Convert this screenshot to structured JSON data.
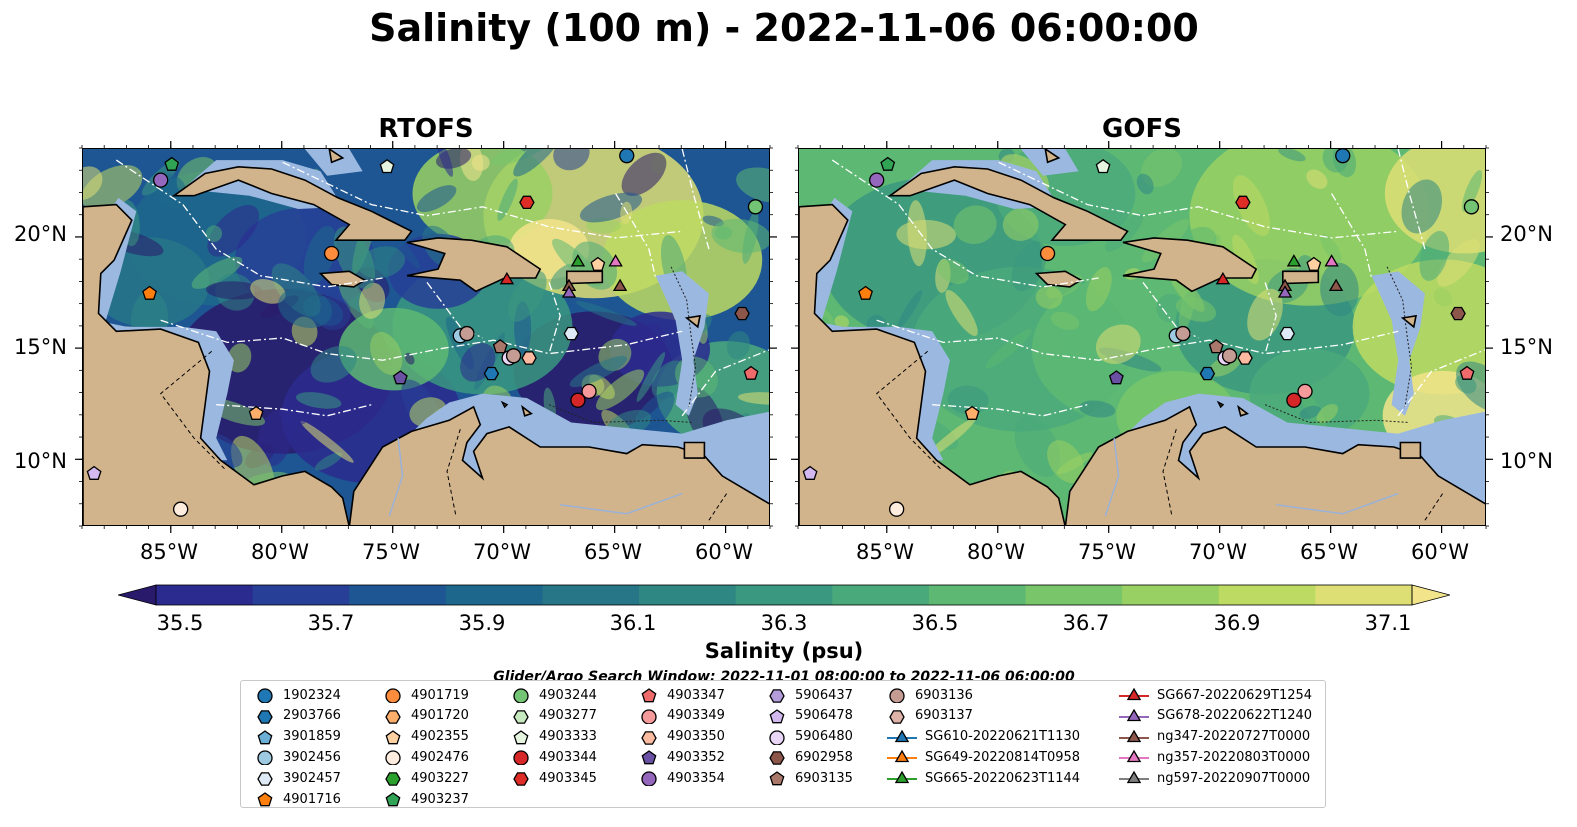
{
  "title": "Salinity (100 m) - 2022-11-06 06:00:00",
  "panels": [
    {
      "id": "rtofs",
      "title": "RTOFS"
    },
    {
      "id": "gofs",
      "title": "GOFS"
    }
  ],
  "axes": {
    "lon_ticks": [
      "85°W",
      "80°W",
      "75°W",
      "70°W",
      "65°W",
      "60°W"
    ],
    "lat_ticks": [
      "20°N",
      "15°N",
      "10°N"
    ]
  },
  "colorbar": {
    "label": "Salinity (psu)",
    "ticks": [
      "35.5",
      "35.7",
      "35.9",
      "36.1",
      "36.3",
      "36.5",
      "36.7",
      "36.9",
      "37.1"
    ],
    "colors": [
      "#2a1a6b",
      "#2b2a8e",
      "#273f96",
      "#1d5692",
      "#1e678c",
      "#277688",
      "#2f8784",
      "#3a9880",
      "#4aa97a",
      "#5db873",
      "#78c56a",
      "#99d063",
      "#bdda63",
      "#ddde74",
      "#f2e48b"
    ]
  },
  "search_window": "Glider/Argo Search Window: 2022-11-01 08:00:00 to 2022-11-06 06:00:00",
  "legend": [
    {
      "label": "1902324",
      "marker": "circle",
      "color": "#1f77b4"
    },
    {
      "label": "2903766",
      "marker": "hexagon",
      "color": "#1f77b4"
    },
    {
      "label": "3901859",
      "marker": "pentagon",
      "color": "#6baed6"
    },
    {
      "label": "3902456",
      "marker": "circle",
      "color": "#9ecae1"
    },
    {
      "label": "3902457",
      "marker": "hexagon",
      "color": "#deebf7"
    },
    {
      "label": "4901716",
      "marker": "pentagon",
      "color": "#ff7f0e"
    },
    {
      "label": "4901719",
      "marker": "circle",
      "color": "#fd8d3c"
    },
    {
      "label": "4901720",
      "marker": "hexagon",
      "color": "#fdae6b"
    },
    {
      "label": "4902355",
      "marker": "pentagon",
      "color": "#fdd0a2"
    },
    {
      "label": "4902476",
      "marker": "circle",
      "color": "#feedde"
    },
    {
      "label": "4903227",
      "marker": "hexagon",
      "color": "#2ca02c"
    },
    {
      "label": "4903237",
      "marker": "pentagon",
      "color": "#31a354"
    },
    {
      "label": "4903244",
      "marker": "circle",
      "color": "#74c476"
    },
    {
      "label": "4903277",
      "marker": "hexagon",
      "color": "#c7e9c0"
    },
    {
      "label": "4903333",
      "marker": "pentagon",
      "color": "#e5f5e0"
    },
    {
      "label": "4903344",
      "marker": "circle",
      "color": "#d62728"
    },
    {
      "label": "4903345",
      "marker": "hexagon",
      "color": "#de2d26"
    },
    {
      "label": "4903347",
      "marker": "pentagon",
      "color": "#ef6a6a"
    },
    {
      "label": "4903349",
      "marker": "circle",
      "color": "#f49a9a"
    },
    {
      "label": "4903350",
      "marker": "hexagon",
      "color": "#fcbba1"
    },
    {
      "label": "4903352",
      "marker": "pentagon",
      "color": "#6a51a3"
    },
    {
      "label": "4903354",
      "marker": "circle",
      "color": "#9467bd"
    },
    {
      "label": "5906437",
      "marker": "hexagon",
      "color": "#b39ddb"
    },
    {
      "label": "5906478",
      "marker": "pentagon",
      "color": "#d4b9f0"
    },
    {
      "label": "5906480",
      "marker": "circle",
      "color": "#e9d5f5"
    },
    {
      "label": "6902958",
      "marker": "hexagon",
      "color": "#8c564b"
    },
    {
      "label": "6903135",
      "marker": "pentagon",
      "color": "#a9786b"
    },
    {
      "label": "6903136",
      "marker": "circle",
      "color": "#c49c94"
    },
    {
      "label": "6903137",
      "marker": "hexagon",
      "color": "#e0b3a8"
    },
    {
      "label": "SG610-20220621T1130",
      "marker": "triangle-line",
      "color": "#1f77b4"
    },
    {
      "label": "SG649-20220814T0958",
      "marker": "triangle-line",
      "color": "#ff7f0e"
    },
    {
      "label": "SG665-20220623T1144",
      "marker": "triangle-line",
      "color": "#2ca02c"
    },
    {
      "label": "SG667-20220629T1254",
      "marker": "triangle-line",
      "color": "#d62728"
    },
    {
      "label": "SG678-20220622T1240",
      "marker": "triangle-line",
      "color": "#9467bd"
    },
    {
      "label": "ng347-20220727T0000",
      "marker": "triangle-line",
      "color": "#8c564b"
    },
    {
      "label": "ng357-20220803T0000",
      "marker": "triangle-line",
      "color": "#e377c2"
    },
    {
      "label": "ng597-20220907T0000",
      "marker": "triangle-line",
      "color": "#7f7f7f"
    }
  ],
  "map_data": {
    "extent": {
      "lon": [
        -89,
        -58
      ],
      "lat": [
        7,
        24
      ]
    },
    "land_color": "#d2b48c",
    "shelf_color": "#9bb8e0",
    "platforms": [
      {
        "id": "4903237",
        "lon": -85.0,
        "lat": 23.3,
        "marker": "pentagon",
        "color": "#31a354"
      },
      {
        "id": "4903354",
        "lon": -85.5,
        "lat": 22.6,
        "marker": "circle",
        "color": "#9467bd"
      },
      {
        "id": "4903333",
        "lon": -75.3,
        "lat": 23.2,
        "marker": "pentagon",
        "color": "#e5f5e0"
      },
      {
        "id": "1902324",
        "lon": -64.5,
        "lat": 23.7,
        "marker": "circle",
        "color": "#1f77b4"
      },
      {
        "id": "4903345",
        "lon": -69.0,
        "lat": 21.6,
        "marker": "hexagon",
        "color": "#de2d26"
      },
      {
        "id": "4903244",
        "lon": -58.7,
        "lat": 21.4,
        "marker": "circle",
        "color": "#74c476"
      },
      {
        "id": "4901719",
        "lon": -77.8,
        "lat": 19.3,
        "marker": "circle",
        "color": "#fd8d3c"
      },
      {
        "id": "4901716",
        "lon": -86.0,
        "lat": 17.5,
        "marker": "pentagon",
        "color": "#ff7f0e"
      },
      {
        "id": "SG665-20220623T1144",
        "lon": -66.7,
        "lat": 18.9,
        "marker": "triangle",
        "color": "#2ca02c"
      },
      {
        "id": "4902355",
        "lon": -65.8,
        "lat": 18.8,
        "marker": "pentagon",
        "color": "#fdd0a2"
      },
      {
        "id": "ng357-20220803T0000",
        "lon": -65.0,
        "lat": 18.9,
        "marker": "triangle",
        "color": "#e377c2"
      },
      {
        "id": "SG667-20220629T1254",
        "lon": -69.9,
        "lat": 18.1,
        "marker": "triangle",
        "color": "#d62728"
      },
      {
        "id": "ng347-20220727T0000",
        "lon": -67.1,
        "lat": 17.8,
        "marker": "triangle",
        "color": "#8c564b"
      },
      {
        "id": "SG678-20220622T1240",
        "lon": -67.1,
        "lat": 17.5,
        "marker": "triangle",
        "color": "#9467bd"
      },
      {
        "id": "ng347-20220727T0000 east",
        "lon": -64.8,
        "lat": 17.8,
        "marker": "triangle",
        "color": "#8c564b"
      },
      {
        "id": "6902958",
        "lon": -59.3,
        "lat": 16.6,
        "marker": "hexagon",
        "color": "#8c564b"
      },
      {
        "id": "3902456",
        "lon": -72.0,
        "lat": 15.6,
        "marker": "circle",
        "color": "#9ecae1"
      },
      {
        "id": "6903136",
        "lon": -71.7,
        "lat": 15.7,
        "marker": "circle",
        "color": "#c49c94"
      },
      {
        "id": "3902457",
        "lon": -67.0,
        "lat": 15.7,
        "marker": "hexagon",
        "color": "#deebf7"
      },
      {
        "id": "6903135",
        "lon": -70.2,
        "lat": 15.1,
        "marker": "pentagon",
        "color": "#a9786b"
      },
      {
        "id": "5906480",
        "lon": -69.8,
        "lat": 14.6,
        "marker": "circle",
        "color": "#e9d5f5"
      },
      {
        "id": "6903136 b",
        "lon": -69.6,
        "lat": 14.7,
        "marker": "circle",
        "color": "#c49c94"
      },
      {
        "id": "4903350",
        "lon": -68.9,
        "lat": 14.6,
        "marker": "hexagon",
        "color": "#fcbba1"
      },
      {
        "id": "2903766",
        "lon": -70.6,
        "lat": 13.9,
        "marker": "hexagon",
        "color": "#1f77b4"
      },
      {
        "id": "4903352",
        "lon": -74.7,
        "lat": 13.7,
        "marker": "pentagon",
        "color": "#6a51a3"
      },
      {
        "id": "4903347",
        "lon": -58.9,
        "lat": 13.9,
        "marker": "pentagon",
        "color": "#ef6a6a"
      },
      {
        "id": "4903349",
        "lon": -66.2,
        "lat": 13.1,
        "marker": "circle",
        "color": "#f49a9a"
      },
      {
        "id": "4903344",
        "lon": -66.7,
        "lat": 12.7,
        "marker": "circle",
        "color": "#d62728"
      },
      {
        "id": "4902476 b",
        "lon": -81.2,
        "lat": 12.1,
        "marker": "pentagon",
        "color": "#fdae6b"
      },
      {
        "id": "5906478",
        "lon": -88.5,
        "lat": 9.4,
        "marker": "pentagon",
        "color": "#d4b9f0"
      },
      {
        "id": "4902476",
        "lon": -84.6,
        "lat": 7.8,
        "marker": "circle",
        "color": "#feedde"
      }
    ]
  }
}
